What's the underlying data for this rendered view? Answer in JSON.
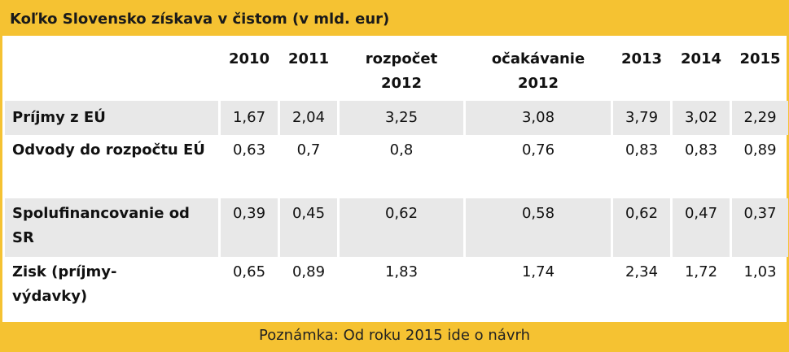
{
  "title": "Koľko Slovensko získava v čistom (v mld. eur)",
  "note": "Poznámka: Od roku 2015 ide o návrh",
  "colors": {
    "frame": "#f5c232",
    "shade": "#e8e8e8"
  },
  "chart_data": {
    "type": "table",
    "title": "Koľko Slovensko získava v čistom (v mld. eur)",
    "columns": [
      "2010",
      "2011",
      "rozpočet 2012",
      "očakávanie 2012",
      "2013",
      "2014",
      "2015"
    ],
    "rows": [
      {
        "label": "Príjmy z EÚ",
        "values": [
          "1,67",
          "2,04",
          "3,25",
          "3,08",
          "3,79",
          "3,02",
          "2,29"
        ]
      },
      {
        "label": "Odvody do rozpočtu EÚ",
        "values": [
          "0,63",
          "0,7",
          "0,8",
          "0,76",
          "0,83",
          "0,83",
          "0,89"
        ]
      },
      {
        "label": "Spolufinancovanie od SR",
        "values": [
          "0,39",
          "0,45",
          "0,62",
          "0,58",
          "0,62",
          "0,47",
          "0,37"
        ]
      },
      {
        "label": "Zisk (príjmy-výdavky)",
        "values": [
          "0,65",
          "0,89",
          "1,83",
          "1,74",
          "2,34",
          "1,72",
          "1,03"
        ]
      }
    ],
    "note": "Poznámka: Od roku 2015 ide o návrh"
  }
}
